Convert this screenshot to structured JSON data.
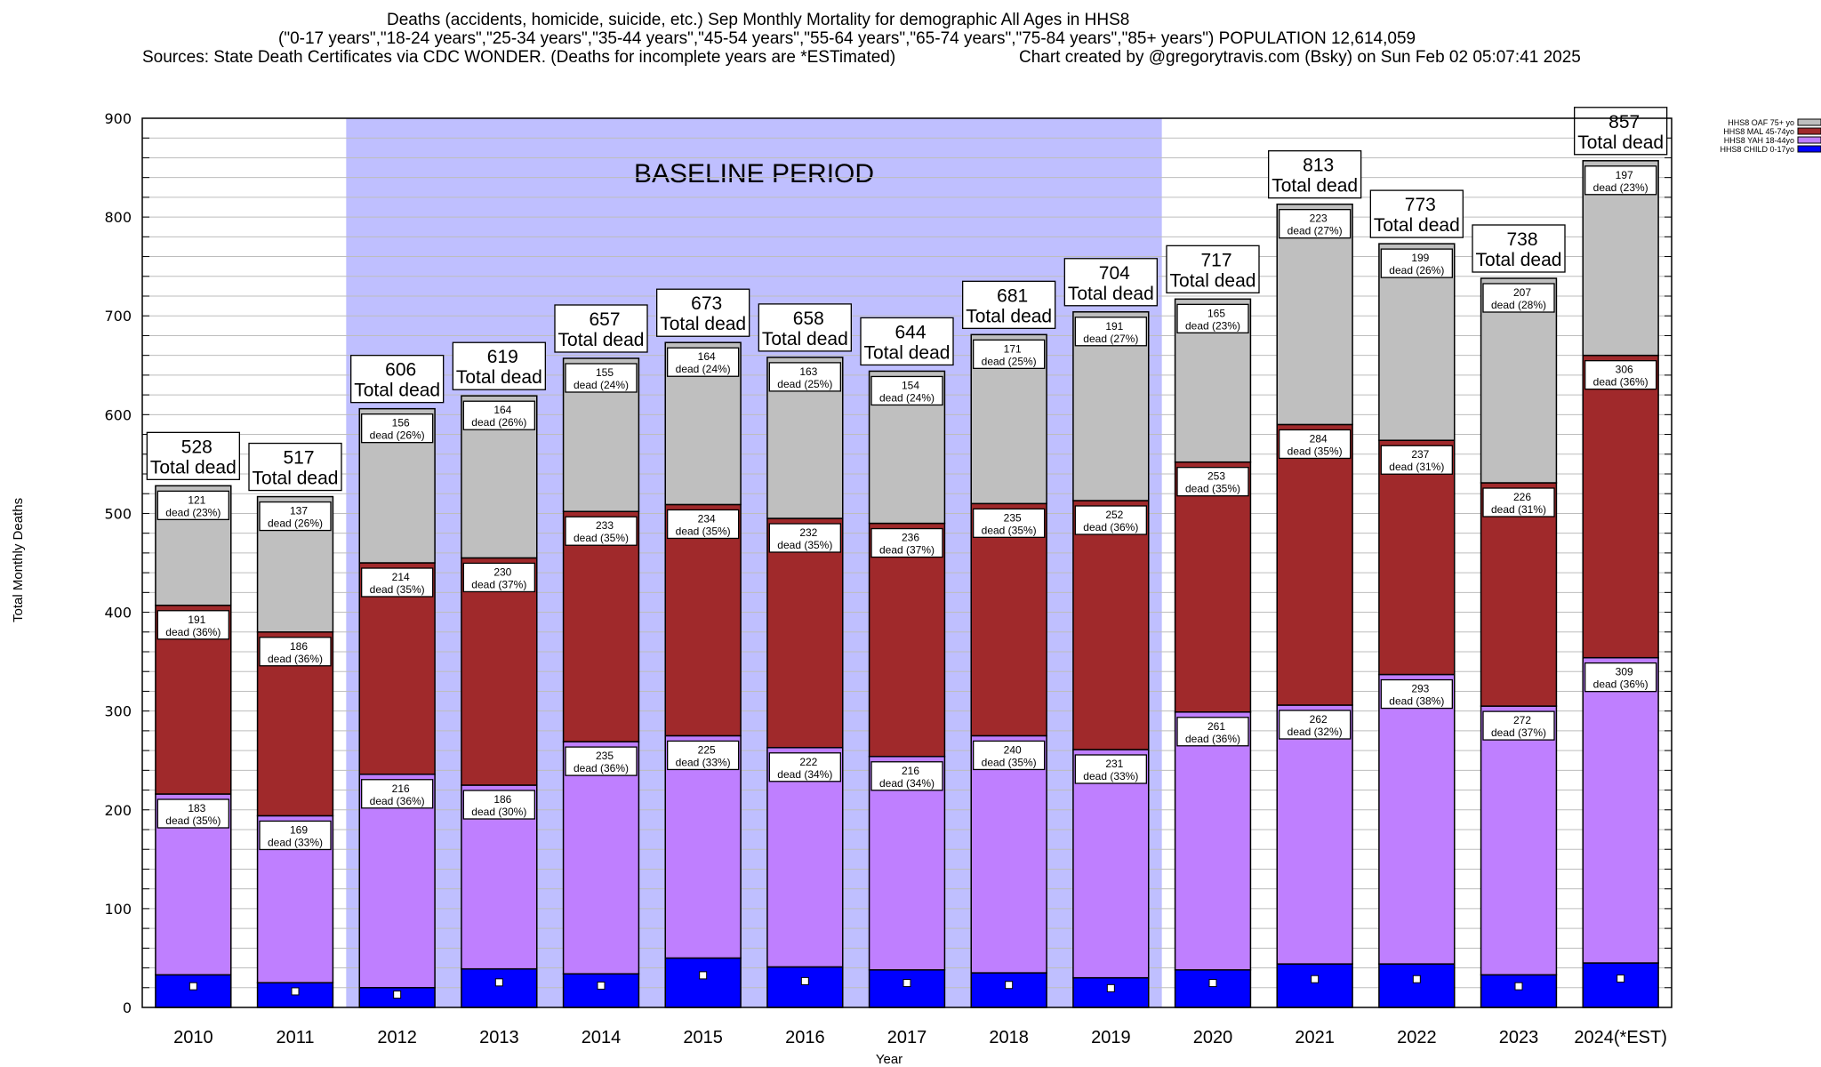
{
  "header": {
    "line1": "Deaths (accidents, homicide, suicide, etc.) Sep Monthly Mortality for demographic All Ages in HHS8",
    "line2": "(\"0-17 years\",\"18-24 years\",\"25-34 years\",\"35-44 years\",\"45-54 years\",\"55-64 years\",\"65-74 years\",\"75-84 years\",\"85+ years\") POPULATION 12,614,059",
    "line3_left": "Sources: State Death Certificates via CDC WONDER. (Deaths for incomplete years are *ESTimated)",
    "line3_right": "Chart created by @gregorytravis.com (Bsky) on Sun Feb 02 05:07:41 2025"
  },
  "chart_data": {
    "type": "bar",
    "stacked": true,
    "title": "Deaths (accidents, homicide, suicide, etc.) Sep Monthly Mortality for demographic All Ages in HHS8",
    "xlabel": "Year",
    "ylabel": "Total Monthly Deaths",
    "ylim": [
      0,
      900
    ],
    "yticks": [
      0,
      100,
      200,
      300,
      400,
      500,
      600,
      700,
      800,
      900
    ],
    "minor_grid_step": 20,
    "grid": true,
    "legend_position": "top-right",
    "categories": [
      "2010",
      "2011",
      "2012",
      "2013",
      "2014",
      "2015",
      "2016",
      "2017",
      "2018",
      "2019",
      "2020",
      "2021",
      "2022",
      "2023",
      "2024(*EST)"
    ],
    "totals": [
      528,
      517,
      606,
      619,
      657,
      673,
      658,
      644,
      681,
      704,
      717,
      813,
      773,
      738,
      857
    ],
    "total_label_suffix": "Total dead",
    "segment_label_word": "dead",
    "series": [
      {
        "name": "HHS8 CHILD 0-17yo",
        "color": "#0000ff",
        "labeled": false,
        "values": [
          33,
          25,
          20,
          39,
          34,
          50,
          41,
          38,
          35,
          30,
          38,
          44,
          44,
          33,
          45
        ]
      },
      {
        "name": "HHS8 YAH 18-44yo",
        "color": "#bf7fff",
        "labeled": true,
        "values": [
          183,
          169,
          216,
          186,
          235,
          225,
          222,
          216,
          240,
          231,
          261,
          262,
          293,
          272,
          309
        ],
        "percents": [
          35,
          33,
          36,
          30,
          36,
          33,
          34,
          34,
          35,
          33,
          36,
          32,
          38,
          37,
          36
        ]
      },
      {
        "name": "HHS8 MAL 45-74yo",
        "color": "#a0292b",
        "labeled": true,
        "values": [
          191,
          186,
          214,
          230,
          233,
          234,
          232,
          236,
          235,
          252,
          253,
          284,
          237,
          226,
          306
        ],
        "percents": [
          36,
          36,
          35,
          37,
          35,
          35,
          35,
          37,
          35,
          36,
          35,
          35,
          31,
          31,
          36
        ]
      },
      {
        "name": "HHS8 OAF 75+ yo",
        "color": "#bfbfbf",
        "labeled": true,
        "values": [
          121,
          137,
          156,
          164,
          155,
          164,
          163,
          154,
          171,
          191,
          165,
          223,
          199,
          207,
          197
        ],
        "percents": [
          23,
          26,
          26,
          26,
          24,
          24,
          25,
          24,
          25,
          27,
          23,
          27,
          26,
          28,
          23
        ]
      }
    ],
    "legend_order": [
      "HHS8 OAF 75+ yo",
      "HHS8 MAL 45-74yo",
      "HHS8 YAH 18-44yo",
      "HHS8 CHILD 0-17yo"
    ],
    "annotations": [
      {
        "type": "shaded_region",
        "label": "BASELINE PERIOD",
        "from_category": "2012",
        "to_category": "2019",
        "color": "#bfbfff"
      }
    ]
  }
}
